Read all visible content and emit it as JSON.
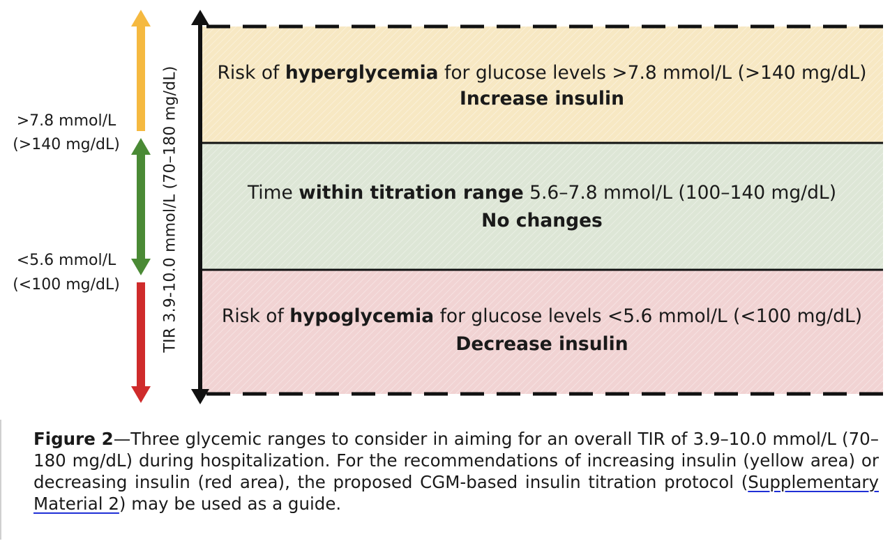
{
  "zones": [
    {
      "text_before": "Risk of ",
      "text_bold": "hyperglycemia",
      "text_after": " for glucose levels >7.8 mmol/L (>140 mg/dL)",
      "action": "Increase insulin",
      "color": "#f7e8c3"
    },
    {
      "text_before": "Time ",
      "text_bold": "within titration range",
      "text_after": " 5.6–7.8 mmol/L (100–140 mg/dL)",
      "action": "No changes",
      "color": "#dde6d6"
    },
    {
      "text_before": "Risk of ",
      "text_bold": "hypoglycemia",
      "text_after": " for glucose levels <5.6 mmol/L (<100 mg/dL)",
      "action": "Decrease insulin",
      "color": "#f1d3d3"
    }
  ],
  "left_labels": {
    "upper_line1": ">7.8 mmol/L",
    "upper_line2": "(>140 mg/dL)",
    "lower_line1": "<5.6 mmol/L",
    "lower_line2": "(<100 mg/dL)"
  },
  "arrow_colors": {
    "yellow": "#f5b940",
    "green": "#4a8a35",
    "red": "#cf2b2b"
  },
  "tir_label": "TIR 3.9-10.0 mmol/L (70–180 mg/dL)",
  "caption": {
    "figure_label": "Figure 2",
    "text_1": "—Three glycemic ranges to consider in aiming for an overall TIR of 3.9–10.0 mmol/L (70–180 mg/dL) during hospitalization. For the recommendations of increasing insulin (yellow area) or decreasing insulin (red area), the proposed CGM-based insulin titration protocol (",
    "link": "Supplementary Material 2",
    "text_2": ") may be used as a guide."
  }
}
